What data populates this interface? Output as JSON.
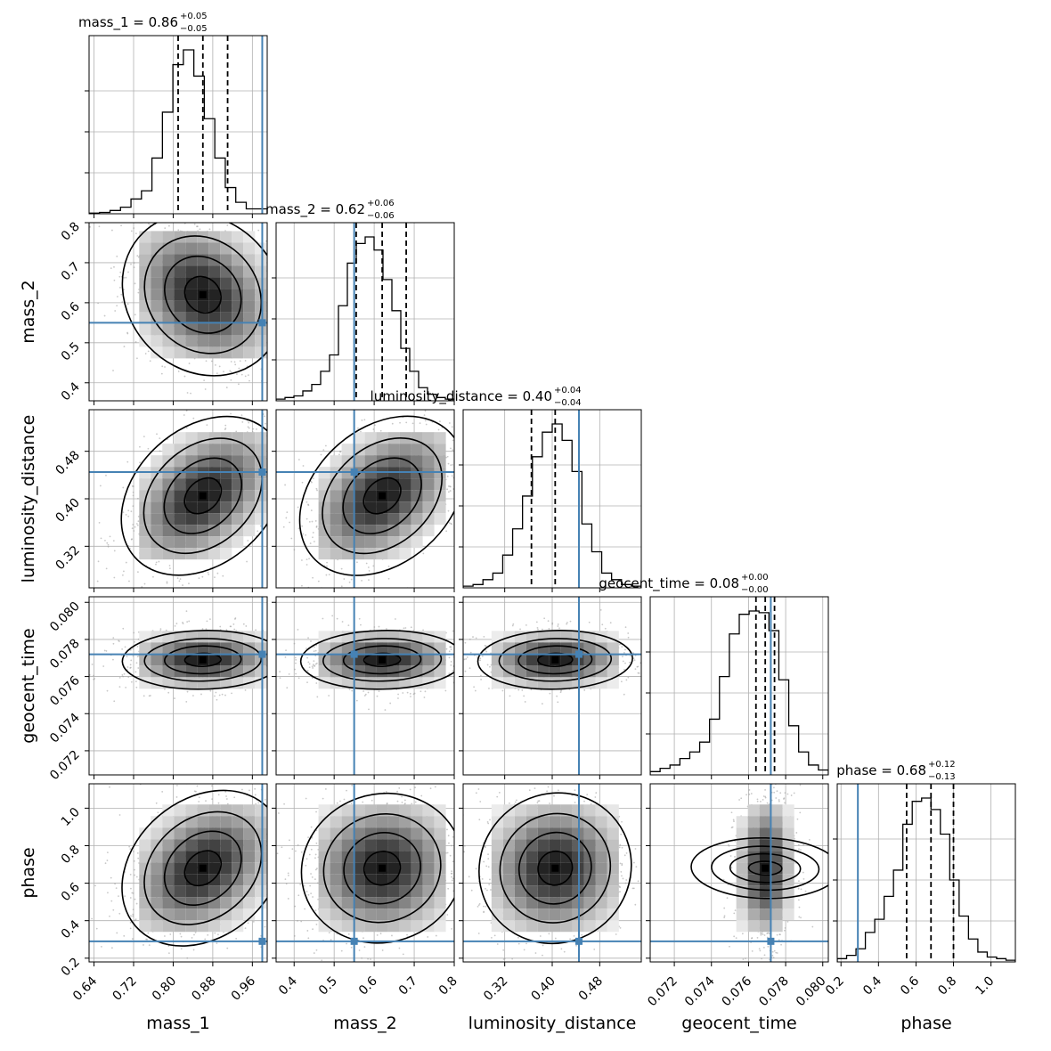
{
  "chart_data": {
    "type": "corner",
    "truth_color": "#4682b4",
    "grid": true,
    "parameters": [
      {
        "key": "mass_1",
        "label": "mass_1",
        "range": [
          0.63,
          0.99
        ],
        "ticks": [
          "0.64",
          "0.72",
          "0.80",
          "0.88",
          "0.96"
        ],
        "title": {
          "text": "mass_1 = 0.86",
          "upper": "+0.05",
          "lower": "−0.05"
        },
        "median": 0.86,
        "quantiles": [
          0.81,
          0.86,
          0.91
        ],
        "truth": 0.98,
        "hist": [
          0.004,
          0.008,
          0.02,
          0.04,
          0.09,
          0.14,
          0.34,
          0.62,
          0.91,
          1.0,
          0.84,
          0.58,
          0.34,
          0.16,
          0.07,
          0.03,
          0.03
        ]
      },
      {
        "key": "mass_2",
        "label": "mass_2",
        "range": [
          0.355,
          0.8
        ],
        "ticks": [
          "0.4",
          "0.5",
          "0.6",
          "0.7",
          "0.8"
        ],
        "title": {
          "text": "mass_2 = 0.62",
          "upper": "+0.06",
          "lower": "−0.06"
        },
        "median": 0.62,
        "quantiles": [
          0.555,
          0.62,
          0.68
        ],
        "truth": 0.55,
        "hist": [
          0.01,
          0.02,
          0.03,
          0.06,
          0.1,
          0.18,
          0.28,
          0.58,
          0.84,
          0.96,
          1.0,
          0.92,
          0.74,
          0.55,
          0.32,
          0.18,
          0.08,
          0.04,
          0.02,
          0.01
        ]
      },
      {
        "key": "luminosity_distance",
        "label": "luminosity_distance",
        "range": [
          0.25,
          0.55
        ],
        "ticks": [
          "0.32",
          "0.40",
          "0.48"
        ],
        "title": {
          "text": "luminosity_distance = 0.40",
          "upper": "+0.04",
          "lower": "−0.04"
        },
        "median": 0.405,
        "quantiles": [
          0.365,
          0.405,
          0.445
        ],
        "truth": 0.445,
        "hist": [
          0.01,
          0.02,
          0.05,
          0.09,
          0.2,
          0.36,
          0.56,
          0.8,
          0.95,
          1.0,
          0.9,
          0.71,
          0.39,
          0.22,
          0.09,
          0.05,
          0.02,
          0.01
        ]
      },
      {
        "key": "geocent_time",
        "label": "geocent_time",
        "range": [
          0.0707,
          0.0803
        ],
        "ticks": [
          "0.072",
          "0.074",
          "0.076",
          "0.078",
          "0.080"
        ],
        "title": {
          "text": "geocent_time = 0.08",
          "upper": "+0.00",
          "lower": "−0.00"
        },
        "median": 0.0769,
        "quantiles": [
          0.0764,
          0.0769,
          0.0774
        ],
        "truth": 0.0772,
        "hist": [
          0.02,
          0.04,
          0.06,
          0.1,
          0.14,
          0.2,
          0.34,
          0.6,
          0.86,
          0.98,
          1.0,
          0.99,
          0.88,
          0.58,
          0.3,
          0.14,
          0.06,
          0.03
        ]
      },
      {
        "key": "phase",
        "label": "phase",
        "range": [
          0.18,
          1.13
        ],
        "ticks": [
          "0.2",
          "0.4",
          "0.6",
          "0.8",
          "1.0"
        ],
        "title": {
          "text": "phase = 0.68",
          "upper": "+0.12",
          "lower": "−0.13"
        },
        "median": 0.68,
        "quantiles": [
          0.55,
          0.68,
          0.8
        ],
        "truth": 0.29,
        "hist": [
          0.02,
          0.04,
          0.08,
          0.18,
          0.26,
          0.4,
          0.56,
          0.84,
          0.98,
          1.0,
          0.93,
          0.78,
          0.5,
          0.28,
          0.14,
          0.06,
          0.03,
          0.02,
          0.01
        ]
      }
    ]
  }
}
